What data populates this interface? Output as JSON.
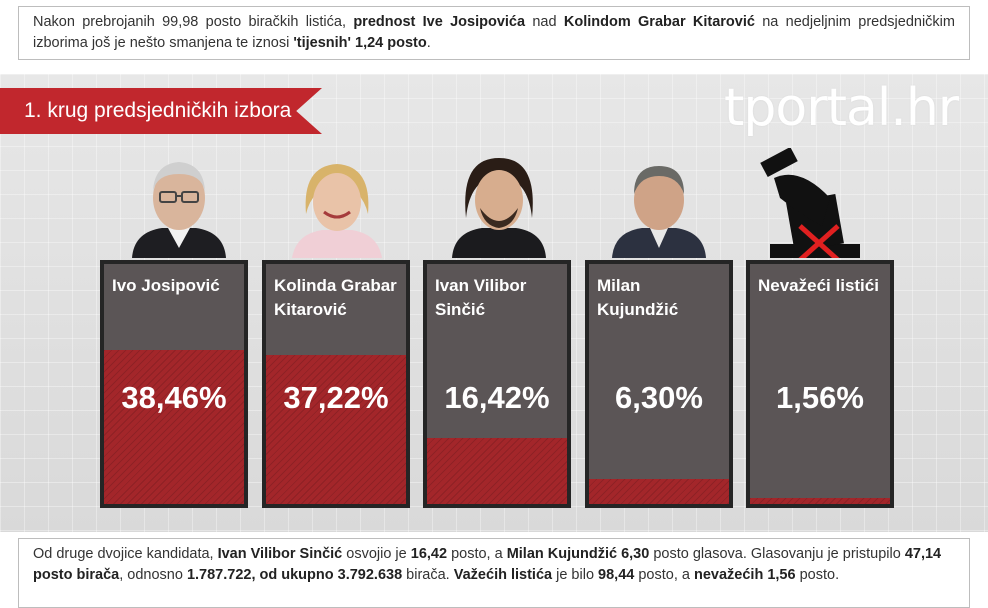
{
  "intro": {
    "t1": "Nakon prebrojanih 99,98 posto biračkih listića, ",
    "b1": "prednost Ive Josipovića",
    "t2": " nad ",
    "b2": "Kolindom Grabar Kitarović",
    "t3": " na nedjeljnim predsjedničkim izborima još je nešto smanjena te iznosi ",
    "b3": "'tijesnih' 1,24 posto",
    "t4": "."
  },
  "ribbon_title": "1. krug predsjedničkih izbora",
  "logo": "tportal.hr",
  "colors": {
    "accent": "#c1272d",
    "card": "#5b5556",
    "fill": "#a3262a"
  },
  "chart_data": {
    "type": "bar",
    "categories": [
      "Ivo Josipović",
      "Kolinda Grabar Kitarović",
      "Ivan Vilibor Sinčić",
      "Milan Kujundžić",
      "Nevažeći listići"
    ],
    "values": [
      38.46,
      37.22,
      16.42,
      6.3,
      1.56
    ],
    "value_labels": [
      "38,46%",
      "37,22%",
      "16,42%",
      "6,30%",
      "1,56%"
    ],
    "name_lines": [
      [
        "Ivo Josipović"
      ],
      [
        "Kolinda Grabar",
        "Kitarović"
      ],
      [
        "Ivan Vilibor",
        "Sinčić"
      ],
      [
        "Milan Kujundžić"
      ],
      [
        "Nevažeći listići"
      ]
    ],
    "title": "1. krug predsjedničkih izbora",
    "ylim": [
      0,
      60
    ]
  },
  "outro": {
    "t1": "Od druge dvojice kandidata, ",
    "b1": "Ivan Vilibor Sinčić",
    "t2": " osvojio je ",
    "b2": "16,42",
    "t3": " posto, a ",
    "b3": "Milan Kujundžić 6,30",
    "t4": " posto glasova. Glasovanju je pristupilo ",
    "b4": "47,14 posto birača",
    "t5": ", odnosno ",
    "b5": "1.787.722, od ukupno 3.792.638",
    "t6": " birača. ",
    "b6": "Važećih listića",
    "t7": " je bilo ",
    "b7": "98,44",
    "t8": " posto, a ",
    "b8": "nevažećih 1,56",
    "t9": " posto."
  }
}
